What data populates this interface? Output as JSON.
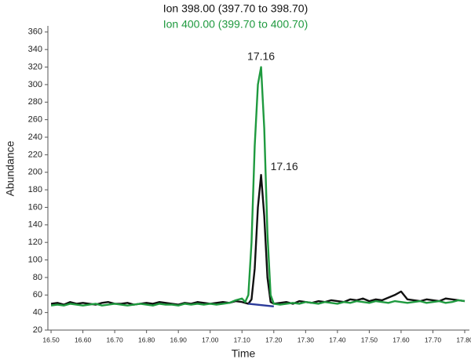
{
  "chart_data": {
    "type": "line",
    "x_label": "Time",
    "y_label": "Abundance",
    "xlim": [
      16.49,
      17.8
    ],
    "ylim": [
      20,
      367
    ],
    "yticks": [
      20,
      40,
      60,
      80,
      100,
      120,
      140,
      160,
      180,
      200,
      220,
      240,
      260,
      280,
      300,
      320,
      340,
      360
    ],
    "xticks": [
      {
        "value": 16.5,
        "label": "16.50"
      },
      {
        "value": 16.6,
        "label": "16.60"
      },
      {
        "value": 16.7,
        "label": "16.70"
      },
      {
        "value": 16.8,
        "label": "16.80"
      },
      {
        "value": 16.9,
        "label": "16.90"
      },
      {
        "value": 17.0,
        "label": "17.00"
      },
      {
        "value": 17.1,
        "label": "17.10"
      },
      {
        "value": 17.2,
        "label": "17.20"
      },
      {
        "value": 17.3,
        "label": "17.30"
      },
      {
        "value": 17.4,
        "label": "17.40"
      },
      {
        "value": 17.5,
        "label": "17.50"
      },
      {
        "value": 17.6,
        "label": "17.60"
      },
      {
        "value": 17.7,
        "label": "17.70"
      },
      {
        "value": 17.8,
        "label": "17.80"
      }
    ],
    "x": [
      16.5,
      16.52,
      16.54,
      16.56,
      16.58,
      16.6,
      16.62,
      16.64,
      16.66,
      16.68,
      16.7,
      16.72,
      16.74,
      16.76,
      16.78,
      16.8,
      16.82,
      16.84,
      16.86,
      16.88,
      16.9,
      16.92,
      16.94,
      16.96,
      16.98,
      17.0,
      17.02,
      17.04,
      17.06,
      17.08,
      17.1,
      17.11,
      17.12,
      17.13,
      17.14,
      17.15,
      17.16,
      17.17,
      17.18,
      17.19,
      17.2,
      17.22,
      17.24,
      17.26,
      17.28,
      17.3,
      17.32,
      17.34,
      17.36,
      17.38,
      17.4,
      17.42,
      17.44,
      17.46,
      17.48,
      17.5,
      17.52,
      17.54,
      17.56,
      17.58,
      17.6,
      17.62,
      17.64,
      17.66,
      17.68,
      17.7,
      17.72,
      17.74,
      17.76,
      17.78,
      17.8
    ],
    "series": [
      {
        "name": "Ion 398.00 (397.70 to 398.70)",
        "color": "#111111",
        "values": [
          50,
          51,
          49,
          52,
          50,
          51,
          50,
          49,
          51,
          52,
          50,
          50,
          51,
          49,
          50,
          51,
          50,
          52,
          51,
          50,
          49,
          51,
          50,
          52,
          51,
          50,
          51,
          52,
          51,
          53,
          52,
          51,
          50,
          55,
          90,
          160,
          197,
          150,
          80,
          52,
          50,
          51,
          52,
          50,
          53,
          52,
          51,
          53,
          52,
          54,
          53,
          52,
          55,
          54,
          56,
          53,
          55,
          54,
          57,
          60,
          64,
          55,
          54,
          53,
          55,
          54,
          53,
          56,
          55,
          54,
          53
        ]
      },
      {
        "name": "Ion 400.00 (399.70 to 400.70)",
        "color": "#1f9a3f",
        "values": [
          48,
          49,
          48,
          50,
          49,
          48,
          49,
          50,
          48,
          49,
          50,
          49,
          48,
          49,
          50,
          49,
          48,
          50,
          49,
          49,
          48,
          50,
          49,
          50,
          49,
          50,
          49,
          50,
          51,
          54,
          56,
          52,
          60,
          120,
          230,
          300,
          320,
          250,
          130,
          60,
          50,
          49,
          50,
          51,
          50,
          52,
          51,
          50,
          52,
          51,
          50,
          52,
          51,
          53,
          52,
          51,
          53,
          52,
          51,
          53,
          52,
          51,
          52,
          53,
          51,
          52,
          53,
          51,
          52,
          54,
          53
        ]
      },
      {
        "color": "#2b3a9a",
        "x": [
          17.12,
          17.2
        ],
        "values": [
          50,
          47
        ]
      }
    ],
    "annotations": [
      {
        "text": "17.16",
        "x": 17.16,
        "y": 320
      },
      {
        "text": "17.16",
        "x": 17.16,
        "y": 197
      }
    ]
  }
}
